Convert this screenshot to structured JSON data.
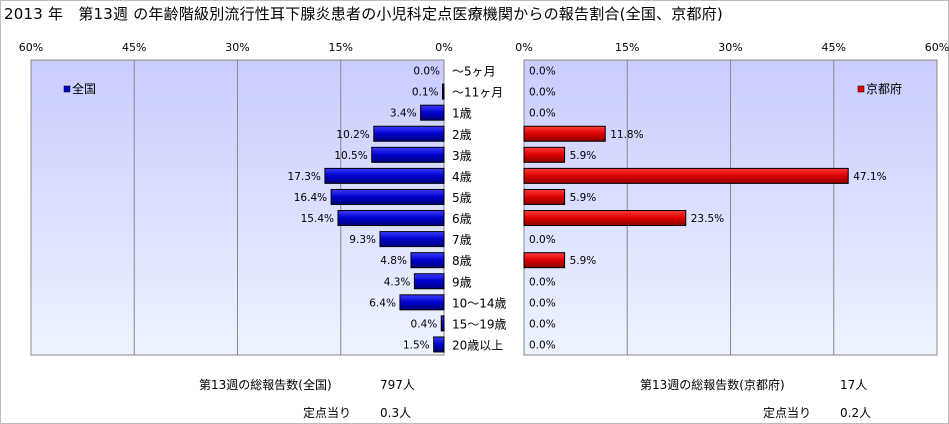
{
  "title": "2013 年　第13週 の年齢階級別流行性耳下腺炎患者の小児科定点医療機関からの報告割合(全国、京都府)",
  "colors": {
    "national_bar": "#0000cc",
    "kyoto_bar": "#e00000",
    "plot_bg_top": "#c9ccff",
    "plot_bg_bottom": "#eef3ff",
    "grid": "#888888"
  },
  "chart_data": [
    {
      "type": "bar",
      "orientation": "horizontal",
      "direction": "right-to-left",
      "legend_position": "top-left",
      "xlim": [
        0,
        60
      ],
      "x_ticks": [
        "60%",
        "45%",
        "30%",
        "15%",
        "0%"
      ],
      "grid": true,
      "categories": [
        "～5ヶ月",
        "～11ヶ月",
        "1歳",
        "2歳",
        "3歳",
        "4歳",
        "5歳",
        "6歳",
        "7歳",
        "8歳",
        "9歳",
        "10～14歳",
        "15～19歳",
        "20歳以上"
      ],
      "series": [
        {
          "name": "全国",
          "values": [
            0.0,
            0.1,
            3.4,
            10.2,
            10.5,
            17.3,
            16.4,
            15.4,
            9.3,
            4.8,
            4.3,
            6.4,
            0.4,
            1.5
          ],
          "labels": [
            "0.0%",
            "0.1%",
            "3.4%",
            "10.2%",
            "10.5%",
            "17.3%",
            "16.4%",
            "15.4%",
            "9.3%",
            "4.8%",
            "4.3%",
            "6.4%",
            "0.4%",
            "1.5%"
          ]
        }
      ]
    },
    {
      "type": "bar",
      "orientation": "horizontal",
      "direction": "left-to-right",
      "legend_position": "top-right",
      "xlim": [
        0,
        60
      ],
      "x_ticks": [
        "0%",
        "15%",
        "30%",
        "45%",
        "60%"
      ],
      "grid": true,
      "categories": [
        "～5ヶ月",
        "～11ヶ月",
        "1歳",
        "2歳",
        "3歳",
        "4歳",
        "5歳",
        "6歳",
        "7歳",
        "8歳",
        "9歳",
        "10～14歳",
        "15～19歳",
        "20歳以上"
      ],
      "series": [
        {
          "name": "京都府",
          "values": [
            0.0,
            0.0,
            0.0,
            11.8,
            5.9,
            47.1,
            5.9,
            23.5,
            0.0,
            5.9,
            0.0,
            0.0,
            0.0,
            0.0
          ],
          "labels": [
            "0.0%",
            "0.0%",
            "0.0%",
            "11.8%",
            "5.9%",
            "47.1%",
            "5.9%",
            "23.5%",
            "0.0%",
            "5.9%",
            "0.0%",
            "0.0%",
            "0.0%",
            "0.0%"
          ]
        }
      ]
    }
  ],
  "footer": {
    "national_total_label": "第13週の総報告数(全国)",
    "national_total_value": "797人",
    "national_per_label": "定点当り",
    "national_per_value": "0.3人",
    "kyoto_total_label": "第13週の総報告数(京都府)",
    "kyoto_total_value": "17人",
    "kyoto_per_label": "定点当り",
    "kyoto_per_value": "0.2人"
  }
}
